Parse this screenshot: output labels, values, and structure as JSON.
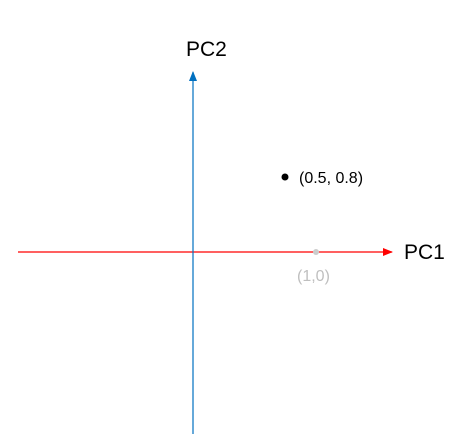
{
  "axes": {
    "x": {
      "label": "PC1",
      "color": "#ff0000"
    },
    "y": {
      "label": "PC2",
      "color": "#0070c0"
    }
  },
  "points": [
    {
      "x": 0.5,
      "y": 0.8,
      "label": "(0.5, 0.8)",
      "color": "#000000",
      "label_color": "#000000"
    },
    {
      "x": 1,
      "y": 0,
      "label": "(1,0)",
      "color": "#cccccc",
      "label_color": "#bfbfbf"
    }
  ]
}
